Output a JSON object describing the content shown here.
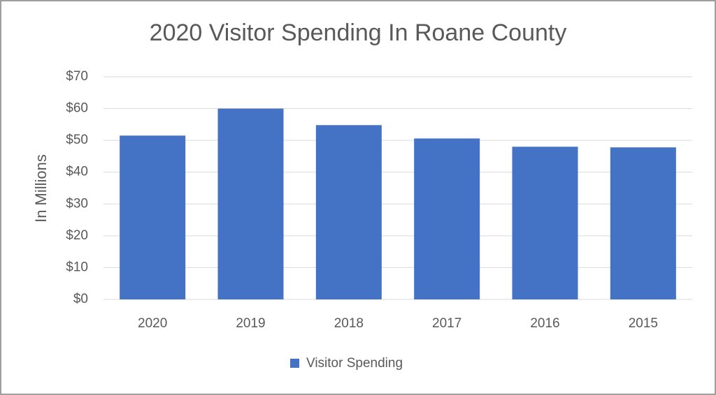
{
  "chart_data": {
    "type": "bar",
    "title": "2020 Visitor Spending In Roane County",
    "y_label": "In Millions",
    "categories": [
      "2020",
      "2019",
      "2018",
      "2017",
      "2016",
      "2015"
    ],
    "series": [
      {
        "name": "Visitor Spending",
        "color": "#4472c4",
        "values": [
          51.5,
          60,
          54.8,
          50.6,
          48,
          47.8
        ]
      }
    ],
    "ylim": [
      0,
      70
    ],
    "yticks": [
      {
        "value": 0,
        "label": "$0"
      },
      {
        "value": 10,
        "label": "$10"
      },
      {
        "value": 20,
        "label": "$20"
      },
      {
        "value": 30,
        "label": "$30"
      },
      {
        "value": 40,
        "label": "$40"
      },
      {
        "value": 50,
        "label": "$50"
      },
      {
        "value": 60,
        "label": "$60"
      },
      {
        "value": 70,
        "label": "$70"
      }
    ],
    "grid": true,
    "legend": "bottom"
  }
}
